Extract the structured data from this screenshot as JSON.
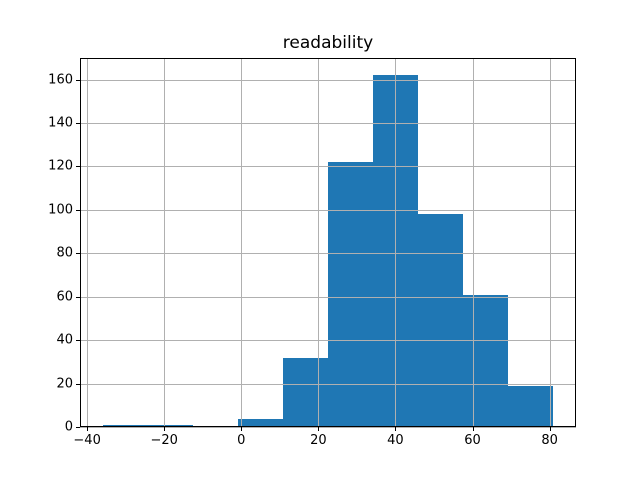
{
  "figure": {
    "title": "readability"
  },
  "chart_data": {
    "type": "bar",
    "subtype": "histogram",
    "title": "readability",
    "xlabel": "",
    "ylabel": "",
    "bin_edges": [
      -36.0,
      -24.3,
      -12.6,
      -0.9,
      10.8,
      22.5,
      34.2,
      45.9,
      57.6,
      69.3,
      81.0
    ],
    "counts": [
      1,
      1,
      0,
      4,
      32,
      122,
      162,
      98,
      61,
      19
    ],
    "xticks": [
      -40,
      -20,
      0,
      20,
      40,
      60,
      80
    ],
    "xtick_labels": [
      "−40",
      "−20",
      "0",
      "20",
      "40",
      "60",
      "80"
    ],
    "yticks": [
      0,
      20,
      40,
      60,
      80,
      100,
      120,
      140,
      160
    ],
    "ytick_labels": [
      "0",
      "20",
      "40",
      "60",
      "80",
      "100",
      "120",
      "140",
      "160"
    ],
    "xlim": [
      -41.85,
      86.85
    ],
    "ylim": [
      0,
      170.1
    ],
    "grid": true,
    "grid_above_bars": true,
    "legend": false,
    "colors": {
      "bar": "#1f77b4",
      "grid": "#b0b0b0",
      "axes": "#000000",
      "text": "#000000",
      "background": "#ffffff"
    }
  }
}
